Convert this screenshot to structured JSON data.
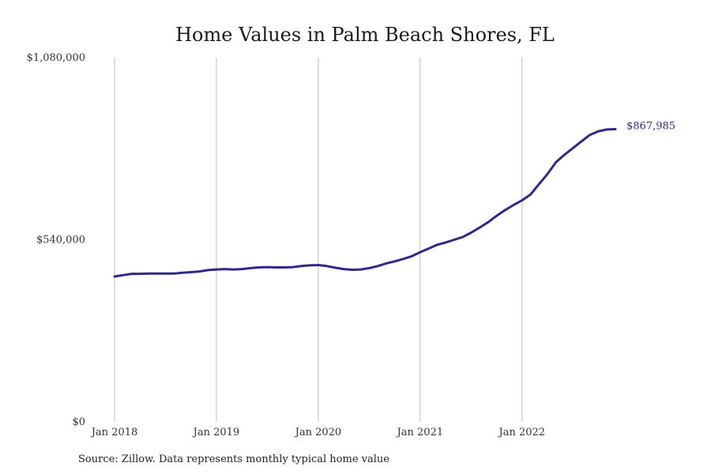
{
  "chart_data": {
    "type": "line",
    "title": "Home Values in Palm Beach Shores, FL",
    "xlabel": "",
    "ylabel": "",
    "source_note": "Source: Zillow. Data represents monthly typical home value",
    "x_ticks": [
      "Jan 2018",
      "Jan 2019",
      "Jan 2020",
      "Jan 2021",
      "Jan 2022"
    ],
    "x_tick_dates": [
      "2018-01",
      "2019-01",
      "2020-01",
      "2021-01",
      "2022-01"
    ],
    "y_ticks": [
      0,
      540000,
      1080000
    ],
    "y_tick_labels": [
      "$0",
      "$540,000",
      "$1,080,000"
    ],
    "ylim": [
      0,
      1080000
    ],
    "xlim": [
      "2018-01",
      "2022-12"
    ],
    "grid": "vertical",
    "line_color": "#2e2a8c",
    "end_label": "$867,985",
    "series": [
      {
        "x": [
          "2018-01",
          "2018-02",
          "2018-03",
          "2018-04",
          "2018-05",
          "2018-06",
          "2018-07",
          "2018-08",
          "2018-09",
          "2018-10",
          "2018-11",
          "2018-12",
          "2019-01",
          "2019-02",
          "2019-03",
          "2019-04",
          "2019-05",
          "2019-06",
          "2019-07",
          "2019-08",
          "2019-09",
          "2019-10",
          "2019-11",
          "2019-12",
          "2020-01",
          "2020-02",
          "2020-03",
          "2020-04",
          "2020-05",
          "2020-06",
          "2020-07",
          "2020-08",
          "2020-09",
          "2020-10",
          "2020-11",
          "2020-12",
          "2021-01",
          "2021-02",
          "2021-03",
          "2021-04",
          "2021-05",
          "2021-06",
          "2021-07",
          "2021-08",
          "2021-09",
          "2021-10",
          "2021-11",
          "2021-12",
          "2022-01",
          "2022-02",
          "2022-03",
          "2022-04",
          "2022-05",
          "2022-06",
          "2022-07",
          "2022-08",
          "2022-09",
          "2022-10",
          "2022-11",
          "2022-12"
        ],
        "values": [
          431000,
          435000,
          439000,
          439000,
          440000,
          440000,
          440000,
          440000,
          442000,
          444000,
          446000,
          450000,
          452000,
          453000,
          452000,
          453000,
          456000,
          458000,
          459000,
          458000,
          458000,
          459000,
          462000,
          464000,
          465000,
          462000,
          457000,
          453000,
          451000,
          452000,
          456000,
          462000,
          470000,
          476000,
          483000,
          491000,
          503000,
          514000,
          525000,
          532000,
          540000,
          548000,
          561000,
          576000,
          592000,
          611000,
          628000,
          643000,
          657000,
          674000,
          705000,
          735000,
          770000,
          792000,
          812000,
          832000,
          851000,
          862000,
          867000,
          867985
        ]
      }
    ]
  }
}
